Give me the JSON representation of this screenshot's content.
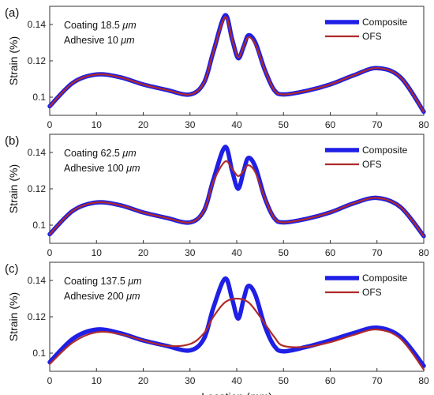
{
  "chart_data": [
    {
      "type": "line",
      "panel_label": "(a)",
      "annotations": {
        "coating_label": "Coating",
        "coating_value": "18.5",
        "adhesive_label": "Adhesive",
        "adhesive_value": "10",
        "unit": "μm"
      },
      "ylabel": "Strain (%)",
      "xlabel": "",
      "xlim": [
        0,
        80
      ],
      "ylim": [
        0.09,
        0.15
      ],
      "xticks": [
        "0",
        "10",
        "20",
        "30",
        "40",
        "50",
        "60",
        "70",
        "80"
      ],
      "yticks": [
        "0.1",
        "0.12",
        "0.14"
      ],
      "legend_position": "top-right",
      "series": [
        {
          "name": "Composite",
          "color": "#1f1fe6",
          "x": [
            0,
            5,
            10,
            15,
            20,
            25,
            30,
            33,
            35,
            37.5,
            39,
            40.3,
            41.5,
            42.5,
            44,
            46,
            48,
            50,
            55,
            60,
            65,
            70,
            75,
            80
          ],
          "values": [
            0.095,
            0.108,
            0.1125,
            0.111,
            0.107,
            0.104,
            0.1015,
            0.108,
            0.125,
            0.145,
            0.132,
            0.1215,
            0.128,
            0.134,
            0.13,
            0.115,
            0.104,
            0.1015,
            0.1035,
            0.107,
            0.112,
            0.116,
            0.111,
            0.092
          ]
        },
        {
          "name": "OFS",
          "color": "#b02a2a",
          "x": [
            0,
            5,
            10,
            15,
            20,
            25,
            30,
            33,
            35,
            37.5,
            39,
            40.3,
            41.5,
            42.5,
            44,
            46,
            48,
            50,
            55,
            60,
            65,
            70,
            75,
            80
          ],
          "values": [
            0.095,
            0.108,
            0.1125,
            0.111,
            0.107,
            0.104,
            0.1015,
            0.108,
            0.125,
            0.144,
            0.132,
            0.122,
            0.128,
            0.133,
            0.129,
            0.115,
            0.104,
            0.1015,
            0.1035,
            0.107,
            0.112,
            0.116,
            0.111,
            0.092
          ]
        }
      ]
    },
    {
      "type": "line",
      "panel_label": "(b)",
      "annotations": {
        "coating_label": "Coating",
        "coating_value": "62.5",
        "adhesive_label": "Adhesive",
        "adhesive_value": "100",
        "unit": "μm"
      },
      "ylabel": "Strain (%)",
      "xlabel": "",
      "xlim": [
        0,
        80
      ],
      "ylim": [
        0.09,
        0.15
      ],
      "xticks": [
        "0",
        "10",
        "20",
        "30",
        "40",
        "50",
        "60",
        "70",
        "80"
      ],
      "yticks": [
        "0.1",
        "0.12",
        "0.14"
      ],
      "legend_position": "top-right",
      "series": [
        {
          "name": "Composite",
          "color": "#1f1fe6",
          "x": [
            0,
            5,
            10,
            15,
            20,
            25,
            30,
            33,
            35,
            37.5,
            39,
            40.3,
            41.5,
            42.5,
            44,
            46,
            48,
            50,
            55,
            60,
            65,
            70,
            75,
            80
          ],
          "values": [
            0.095,
            0.108,
            0.1125,
            0.111,
            0.107,
            0.104,
            0.1015,
            0.108,
            0.125,
            0.143,
            0.13,
            0.12,
            0.13,
            0.137,
            0.132,
            0.115,
            0.104,
            0.1015,
            0.1035,
            0.107,
            0.112,
            0.115,
            0.11,
            0.094
          ]
        },
        {
          "name": "OFS",
          "color": "#b02a2a",
          "x": [
            0,
            5,
            10,
            15,
            20,
            25,
            30,
            33,
            35,
            37.5,
            39,
            40.3,
            41.5,
            42.5,
            44,
            46,
            48,
            50,
            55,
            60,
            65,
            70,
            75,
            80
          ],
          "values": [
            0.095,
            0.108,
            0.1125,
            0.111,
            0.107,
            0.104,
            0.1015,
            0.108,
            0.124,
            0.135,
            0.131,
            0.127,
            0.13,
            0.133,
            0.129,
            0.115,
            0.104,
            0.1015,
            0.1035,
            0.107,
            0.112,
            0.115,
            0.11,
            0.094
          ]
        }
      ]
    },
    {
      "type": "line",
      "panel_label": "(c)",
      "annotations": {
        "coating_label": "Coating",
        "coating_value": "137.5",
        "adhesive_label": "Adhesive",
        "adhesive_value": "200",
        "unit": "μm"
      },
      "ylabel": "Strain (%)",
      "xlabel": "Location",
      "xlabel_unit": "mm",
      "xlim": [
        0,
        80
      ],
      "ylim": [
        0.09,
        0.15
      ],
      "xticks": [
        "0",
        "10",
        "20",
        "30",
        "40",
        "50",
        "60",
        "70",
        "80"
      ],
      "yticks": [
        "0.1",
        "0.12",
        "0.14"
      ],
      "legend_position": "top-right",
      "series": [
        {
          "name": "Composite",
          "color": "#1f1fe6",
          "x": [
            0,
            5,
            10,
            15,
            20,
            25,
            30,
            33,
            35,
            37.5,
            39,
            40.3,
            41.5,
            42.5,
            44,
            46,
            48,
            50,
            55,
            60,
            65,
            70,
            75,
            80
          ],
          "values": [
            0.095,
            0.108,
            0.113,
            0.111,
            0.107,
            0.104,
            0.1015,
            0.108,
            0.125,
            0.141,
            0.13,
            0.119,
            0.13,
            0.137,
            0.132,
            0.115,
            0.104,
            0.101,
            0.1035,
            0.107,
            0.111,
            0.114,
            0.109,
            0.093
          ]
        },
        {
          "name": "OFS",
          "color": "#b02a2a",
          "x": [
            0,
            5,
            10,
            15,
            20,
            25,
            30,
            33,
            35,
            37.5,
            40,
            42.5,
            45,
            48,
            50,
            55,
            60,
            65,
            70,
            75,
            80
          ],
          "values": [
            0.094,
            0.106,
            0.1115,
            0.1105,
            0.107,
            0.104,
            0.105,
            0.111,
            0.12,
            0.128,
            0.13,
            0.128,
            0.12,
            0.109,
            0.104,
            0.1035,
            0.106,
            0.11,
            0.113,
            0.108,
            0.091
          ]
        }
      ]
    }
  ]
}
